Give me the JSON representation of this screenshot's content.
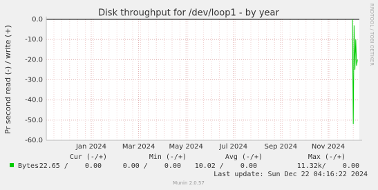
{
  "chart_data": {
    "type": "line",
    "title": "Disk throughput for /dev/loop1 - by year",
    "ylabel": "Pr second read (-) / write (+)",
    "ylim": [
      -60,
      0
    ],
    "yticks": [
      {
        "value": 0,
        "label": "0.0"
      },
      {
        "value": -10,
        "label": "-10.0"
      },
      {
        "value": -20,
        "label": "-20.0"
      },
      {
        "value": -30,
        "label": "-30.0"
      },
      {
        "value": -40,
        "label": "-40.0"
      },
      {
        "value": -50,
        "label": "-50.0"
      },
      {
        "value": -60,
        "label": "-60.0"
      }
    ],
    "xticks": [
      "Jan 2024",
      "Mar 2024",
      "May 2024",
      "Jul 2024",
      "Sep 2024",
      "Nov 2024"
    ],
    "grid": true,
    "x": [
      null,
      null,
      null,
      null,
      null,
      null,
      null
    ],
    "series": [
      {
        "name": "Bytes",
        "color": "#00cc00",
        "values": [
          0,
          -52,
          -3,
          -25,
          -10,
          -23,
          -20
        ]
      }
    ],
    "stats": {
      "headers": [
        "Cur (-/+)",
        "Min (-/+)",
        "Avg (-/+)",
        "Max (-/+)"
      ],
      "rows": [
        {
          "cells": [
            "22.65 /    0.00",
            "0.00 /    0.00",
            "10.02 /    0.00",
            "11.32k/    0.00"
          ]
        }
      ]
    },
    "last_update": "Last update: Sun Dec 22 04:16:22 2024",
    "watermark": "RRDTOOL / TOBI OETIKER",
    "footer": "Munin 2.0.57"
  }
}
